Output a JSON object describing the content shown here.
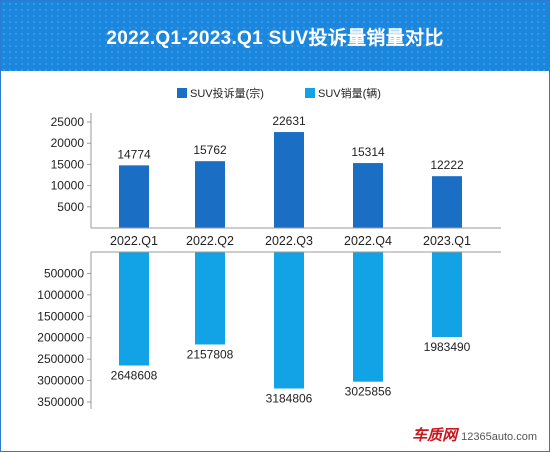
{
  "title": "2022.Q1-2023.Q1 SUV投诉量销量对比",
  "watermark": {
    "brand": "车质网",
    "url": "12365auto.com"
  },
  "colors": {
    "complaints": "#1a6fc4",
    "sales": "#12a3e6",
    "title_bg": "#1a86de"
  },
  "chart_data": [
    {
      "type": "bar",
      "categories": [
        "2022.Q1",
        "2022.Q2",
        "2022.Q3",
        "2022.Q4",
        "2023.Q1"
      ],
      "series": [
        {
          "name": "SUV投诉量(宗)",
          "values": [
            14774,
            15762,
            22631,
            15314,
            12222
          ]
        }
      ],
      "yticks": [
        "25000",
        "20000",
        "15000",
        "10000",
        "5000"
      ],
      "ylim": [
        0,
        25000
      ],
      "legend": "top"
    },
    {
      "type": "bar",
      "categories": [
        "2022.Q1",
        "2022.Q2",
        "2022.Q3",
        "2022.Q4",
        "2023.Q1"
      ],
      "series": [
        {
          "name": "SUV销量(辆)",
          "values": [
            2648608,
            2157808,
            3184806,
            3025856,
            1983490
          ]
        }
      ],
      "yticks": [
        "500000",
        "1000000",
        "1500000",
        "2000000",
        "2500000",
        "3000000",
        "3500000"
      ],
      "ylim": [
        0,
        3500000
      ],
      "inverted": true
    }
  ]
}
